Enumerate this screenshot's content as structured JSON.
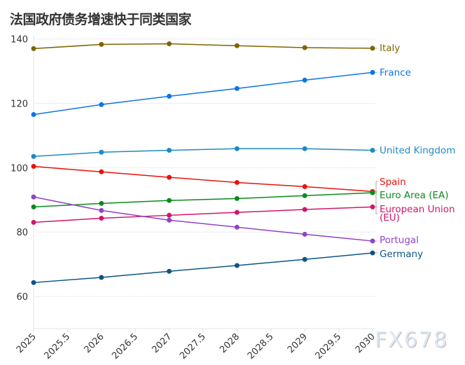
{
  "title": "法国政府债务增速快于同类国家",
  "watermark": "FX678",
  "chart_data": {
    "type": "line",
    "title": "法国政府债务增速快于同类国家",
    "x": [
      2025,
      2026,
      2027,
      2028,
      2029,
      2030
    ],
    "xticks": [
      "2025",
      "2025.5",
      "2026",
      "2026.5",
      "2027",
      "2027.5",
      "2028",
      "2028.5",
      "2029",
      "2029.5",
      "2030"
    ],
    "yticks": [
      "60",
      "80",
      "100",
      "120",
      "140"
    ],
    "xlim": [
      2025,
      2030
    ],
    "ylim": [
      50,
      141
    ],
    "grid": true,
    "legend": "inline-right",
    "series": [
      {
        "name": "Italy",
        "color": "#7f6500",
        "values": [
          137.0,
          138.3,
          138.5,
          137.9,
          137.3,
          137.1
        ]
      },
      {
        "name": "France",
        "color": "#0d75e6",
        "values": [
          116.5,
          119.6,
          122.2,
          124.6,
          127.2,
          129.6
        ]
      },
      {
        "name": "United Kingdom",
        "color": "#1f8ac0",
        "values": [
          103.5,
          104.8,
          105.4,
          105.9,
          105.9,
          105.4
        ]
      },
      {
        "name": "Spain",
        "color": "#e8120c",
        "values": [
          100.4,
          98.7,
          97.0,
          95.4,
          94.1,
          92.6
        ]
      },
      {
        "name": "Euro Area (EA)",
        "color": "#0b8a1f",
        "values": [
          87.8,
          88.9,
          89.8,
          90.4,
          91.3,
          92.2
        ]
      },
      {
        "name": "European Union (EU)",
        "color": "#d1166a",
        "values": [
          83.0,
          84.3,
          85.2,
          86.1,
          87.0,
          87.8
        ]
      },
      {
        "name": "Portugal",
        "color": "#8e44c9",
        "values": [
          90.9,
          86.7,
          83.7,
          81.5,
          79.3,
          77.2
        ]
      },
      {
        "name": "Germany",
        "color": "#0b5585",
        "values": [
          64.3,
          65.9,
          67.8,
          69.6,
          71.5,
          73.5
        ]
      }
    ]
  }
}
